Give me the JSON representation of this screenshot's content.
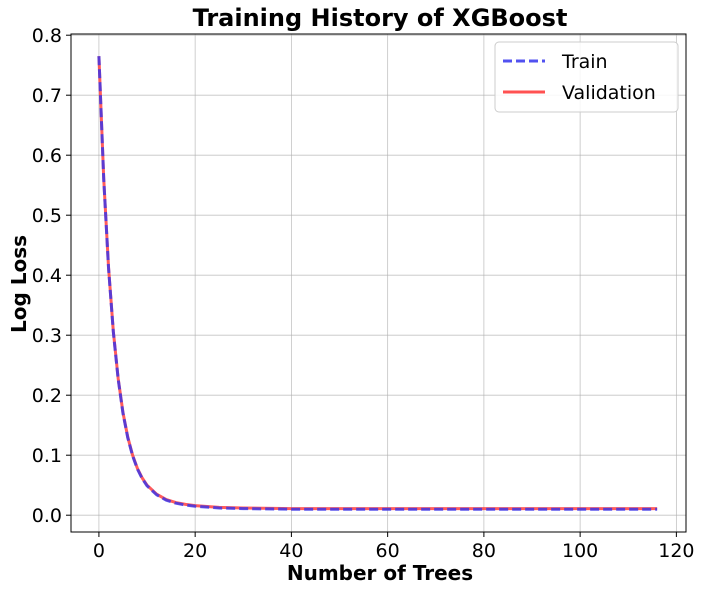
{
  "chart_data": {
    "type": "line",
    "title": "Training History of XGBoost",
    "xlabel": "Number of Trees",
    "ylabel": "Log Loss",
    "xlim": [
      -5.8,
      122
    ],
    "ylim": [
      -0.028,
      0.802
    ],
    "xticks": [
      0,
      20,
      40,
      60,
      80,
      100,
      120
    ],
    "xtick_labels": [
      "0",
      "20",
      "40",
      "60",
      "80",
      "100",
      "120"
    ],
    "yticks": [
      0.0,
      0.1,
      0.2,
      0.3,
      0.4,
      0.5,
      0.6,
      0.7,
      0.8
    ],
    "ytick_labels": [
      "0.0",
      "0.1",
      "0.2",
      "0.3",
      "0.4",
      "0.5",
      "0.6",
      "0.7",
      "0.8"
    ],
    "grid": true,
    "legend_position": "top-right",
    "x": [
      0,
      1,
      2,
      3,
      4,
      5,
      6,
      7,
      8,
      9,
      10,
      12,
      14,
      16,
      18,
      20,
      25,
      30,
      40,
      50,
      60,
      70,
      80,
      90,
      100,
      110,
      116
    ],
    "series": [
      {
        "name": "Train",
        "color": "#3333ee",
        "style": "dashed",
        "values": [
          0.765,
          0.56,
          0.412,
          0.305,
          0.227,
          0.17,
          0.129,
          0.099,
          0.077,
          0.061,
          0.049,
          0.034,
          0.025,
          0.02,
          0.017,
          0.015,
          0.012,
          0.011,
          0.01,
          0.01,
          0.01,
          0.01,
          0.01,
          0.01,
          0.01,
          0.01,
          0.01
        ]
      },
      {
        "name": "Validation",
        "color": "#ff3333",
        "style": "solid",
        "values": [
          0.765,
          0.561,
          0.413,
          0.306,
          0.228,
          0.171,
          0.13,
          0.1,
          0.078,
          0.062,
          0.05,
          0.035,
          0.026,
          0.021,
          0.018,
          0.016,
          0.013,
          0.012,
          0.011,
          0.011,
          0.011,
          0.011,
          0.011,
          0.011,
          0.011,
          0.011,
          0.011
        ]
      }
    ]
  }
}
